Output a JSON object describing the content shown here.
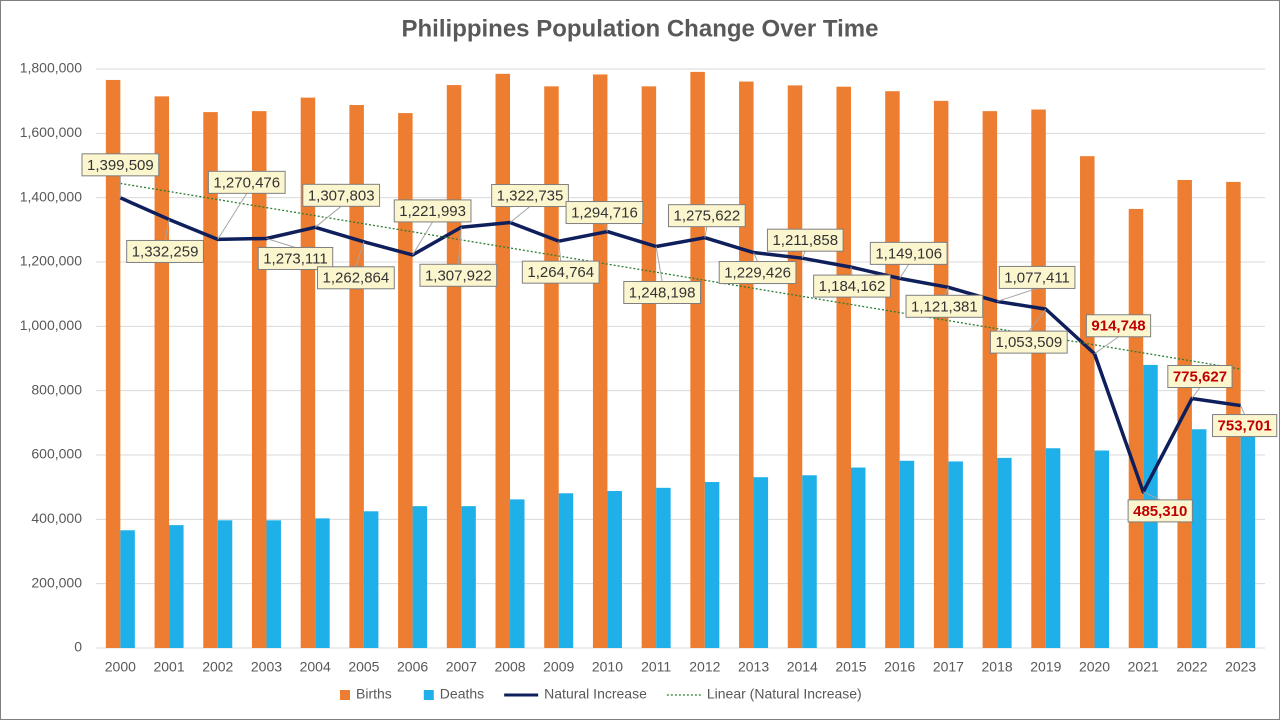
{
  "chart_data": {
    "type": "bar",
    "title": "Philippines Population Change Over Time",
    "categories": [
      "2000",
      "2001",
      "2002",
      "2003",
      "2004",
      "2005",
      "2006",
      "2007",
      "2008",
      "2009",
      "2010",
      "2011",
      "2012",
      "2013",
      "2014",
      "2015",
      "2016",
      "2017",
      "2018",
      "2019",
      "2020",
      "2021",
      "2022",
      "2023"
    ],
    "series": [
      {
        "name": "Births",
        "type": "bar",
        "color": "#ed7d31",
        "values": [
          1766000,
          1715000,
          1666000,
          1669000,
          1711000,
          1688000,
          1663000,
          1750000,
          1785000,
          1746000,
          1783000,
          1746000,
          1791000,
          1761000,
          1749000,
          1745000,
          1731000,
          1701000,
          1669000,
          1674000,
          1529000,
          1365000,
          1455000,
          1449000
        ]
      },
      {
        "name": "Deaths",
        "type": "bar",
        "color": "#1fb0ea",
        "values": [
          366000,
          382000,
          397000,
          397000,
          403000,
          425000,
          441000,
          441000,
          462000,
          481000,
          488000,
          498000,
          516000,
          531000,
          537000,
          561000,
          582000,
          580000,
          591000,
          621000,
          614000,
          880000,
          680000,
          695000
        ]
      },
      {
        "name": "Natural Increase",
        "type": "line",
        "color": "#0f1f5c",
        "values": [
          1399509,
          1332259,
          1270476,
          1273111,
          1307803,
          1262864,
          1221993,
          1307922,
          1322735,
          1264764,
          1294716,
          1248198,
          1275622,
          1229426,
          1211858,
          1184162,
          1149106,
          1121381,
          1077411,
          1053509,
          914748,
          485310,
          775627,
          753701
        ],
        "value_labels": [
          "1,399,509",
          "1,332,259",
          "1,270,476",
          "1,273,111",
          "1,307,803",
          "1,262,864",
          "1,221,993",
          "1,307,922",
          "1,322,735",
          "1,264,764",
          "1,294,716",
          "1,248,198",
          "1,275,622",
          "1,229,426",
          "1,211,858",
          "1,184,162",
          "1,149,106",
          "1,121,381",
          "1,077,411",
          "1,053,509",
          "914,748",
          "485,310",
          "775,627",
          "753,701"
        ],
        "value_label_colors": [
          "#333333",
          "#333333",
          "#333333",
          "#333333",
          "#333333",
          "#333333",
          "#333333",
          "#333333",
          "#333333",
          "#333333",
          "#333333",
          "#333333",
          "#333333",
          "#333333",
          "#333333",
          "#333333",
          "#333333",
          "#333333",
          "#333333",
          "#333333",
          "#c00000",
          "#c00000",
          "#c00000",
          "#c00000"
        ]
      }
    ],
    "trendline": {
      "name": "Linear (Natural Increase)",
      "type": "linear",
      "color": "#2e7d32"
    },
    "ylim": [
      0,
      1800000
    ],
    "yticks": [
      0,
      {
        "value": 200000,
        "label": "200,000"
      },
      {
        "value": 400000,
        "label": "400,000"
      },
      {
        "value": 600000,
        "label": "600,000"
      },
      {
        "value": 800000,
        "label": "800,000"
      },
      {
        "value": 1000000,
        "label": "1,000,000"
      },
      {
        "value": 1200000,
        "label": "1,200,000"
      },
      {
        "value": 1400000,
        "label": "1,400,000"
      },
      {
        "value": 1600000,
        "label": "1,600,000"
      },
      {
        "value": 1800000,
        "label": "1,800,000"
      }
    ],
    "grid": true,
    "legend": "bottom"
  }
}
